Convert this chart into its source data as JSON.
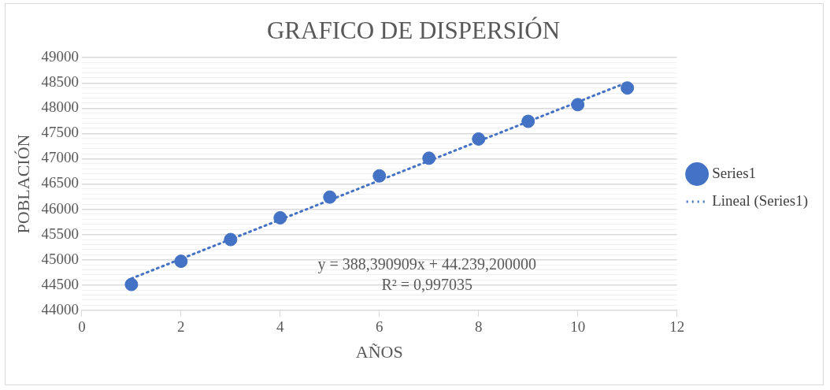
{
  "chart_data": {
    "type": "scatter",
    "title": "GRAFICO DE DISPERSIÓN",
    "xlabel": "AÑOS",
    "ylabel": "POBLACIÓN",
    "x": [
      1,
      2,
      3,
      4,
      5,
      6,
      7,
      8,
      9,
      10,
      11
    ],
    "series": [
      {
        "name": "Series1",
        "color": "#4472c4",
        "marker": "circle",
        "values": [
          44510,
          44970,
          45400,
          45830,
          46240,
          46660,
          47010,
          47390,
          47740,
          48070,
          48400
        ]
      },
      {
        "name": "Lineal (Series1)",
        "type": "line",
        "color": "#4472c4",
        "line_style": "dotted",
        "marker": "none",
        "x": [
          1,
          11
        ],
        "values": [
          44628,
          48511
        ]
      }
    ],
    "xlim": [
      0,
      12
    ],
    "xticks": [
      0,
      2,
      4,
      6,
      8,
      10,
      12
    ],
    "ylim": [
      44000,
      49000
    ],
    "yticks": [
      44000,
      {
        "value": 44100,
        "label": null
      },
      {
        "value": 44200,
        "label": null
      },
      {
        "value": 44300,
        "label": null
      },
      {
        "value": 44400,
        "label": null
      },
      44500,
      {
        "value": 44600,
        "label": null
      },
      {
        "value": 44700,
        "label": null
      },
      {
        "value": 44800,
        "label": null
      },
      {
        "value": 44900,
        "label": null
      },
      45000,
      {
        "value": 45100,
        "label": null
      },
      {
        "value": 45200,
        "label": null
      },
      {
        "value": 45300,
        "label": null
      },
      {
        "value": 45400,
        "label": null
      },
      45500,
      {
        "value": 45600,
        "label": null
      },
      {
        "value": 45700,
        "label": null
      },
      {
        "value": 45800,
        "label": null
      },
      {
        "value": 45900,
        "label": null
      },
      46000,
      {
        "value": 46100,
        "label": null
      },
      {
        "value": 46200,
        "label": null
      },
      {
        "value": 46300,
        "label": null
      },
      {
        "value": 46400,
        "label": null
      },
      46500,
      {
        "value": 46600,
        "label": null
      },
      {
        "value": 46700,
        "label": null
      },
      {
        "value": 46800,
        "label": null
      },
      {
        "value": 46900,
        "label": null
      },
      47000,
      {
        "value": 47100,
        "label": null
      },
      {
        "value": 47200,
        "label": null
      },
      {
        "value": 47300,
        "label": null
      },
      {
        "value": 47400,
        "label": null
      },
      47500,
      {
        "value": 47600,
        "label": null
      },
      {
        "value": 47700,
        "label": null
      },
      {
        "value": 47800,
        "label": null
      },
      {
        "value": 47900,
        "label": null
      },
      48000,
      {
        "value": 48100,
        "label": null
      },
      {
        "value": 48200,
        "label": null
      },
      {
        "value": 48300,
        "label": null
      },
      {
        "value": 48400,
        "label": null
      },
      48500,
      {
        "value": 48600,
        "label": null
      },
      {
        "value": 48700,
        "label": null
      },
      {
        "value": 48800,
        "label": null
      },
      {
        "value": 48900,
        "label": null
      },
      49000
    ],
    "grid": "y",
    "legend": "right",
    "annotations": [
      "y = 388,390909x + 44.239,200000",
      "R² = 0,997035"
    ]
  }
}
